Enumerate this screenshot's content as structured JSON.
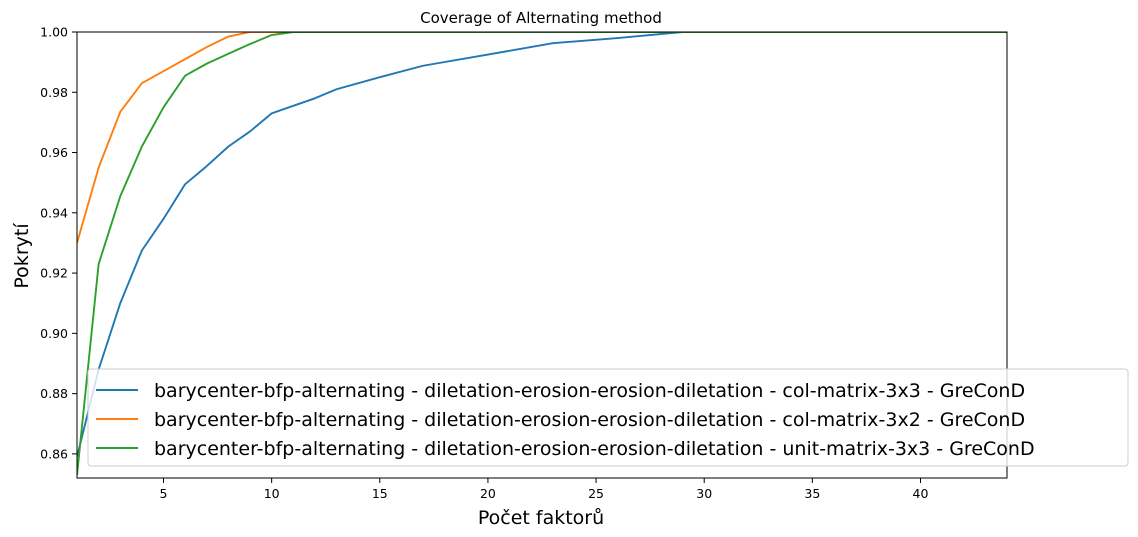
{
  "chart_data": {
    "type": "line",
    "title": "Coverage of Alternating method",
    "xlabel": "Počet faktorů",
    "ylabel": "Pokrytí",
    "xlim": [
      1,
      44
    ],
    "ylim": [
      0.852,
      1.0
    ],
    "xticks": [
      5,
      10,
      15,
      20,
      25,
      30,
      35,
      40
    ],
    "yticks": [
      0.86,
      0.88,
      0.9,
      0.92,
      0.94,
      0.96,
      0.98,
      1.0
    ],
    "ytick_labels": [
      "0.86",
      "0.88",
      "0.90",
      "0.92",
      "0.94",
      "0.96",
      "0.98",
      "1.00"
    ],
    "legend_position": "lower-right",
    "grid": false,
    "series": [
      {
        "name": "barycenter-bfp-alternating - diletation-erosion-erosion-diletation - col-matrix-3x3 - GreConD",
        "color": "#1f77b4",
        "x": [
          1,
          2,
          3,
          4,
          5,
          6,
          7,
          8,
          9,
          10,
          11,
          12,
          13,
          15,
          17,
          20,
          23,
          26,
          29,
          44
        ],
        "y": [
          0.859,
          0.888,
          0.91,
          0.9275,
          0.938,
          0.9495,
          0.9555,
          0.962,
          0.967,
          0.973,
          0.9755,
          0.978,
          0.981,
          0.985,
          0.9888,
          0.9925,
          0.9963,
          0.998,
          1.0,
          1.0
        ]
      },
      {
        "name": "barycenter-bfp-alternating - diletation-erosion-erosion-diletation - col-matrix-3x2 - GreConD",
        "color": "#ff7f0e",
        "x": [
          1,
          2,
          3,
          4,
          5,
          6,
          7,
          8,
          9,
          10,
          44
        ],
        "y": [
          0.93,
          0.955,
          0.9735,
          0.983,
          0.987,
          0.991,
          0.995,
          0.9985,
          1.0,
          1.0,
          1.0
        ]
      },
      {
        "name": "barycenter-bfp-alternating - diletation-erosion-erosion-diletation - unit-matrix-3x3 - GreConD",
        "color": "#2ca02c",
        "x": [
          1,
          2,
          3,
          4,
          5,
          6,
          7,
          8,
          9,
          10,
          11,
          44
        ],
        "y": [
          0.853,
          0.923,
          0.9455,
          0.962,
          0.975,
          0.9855,
          0.9895,
          0.9928,
          0.996,
          0.999,
          1.0,
          1.0
        ]
      }
    ]
  }
}
